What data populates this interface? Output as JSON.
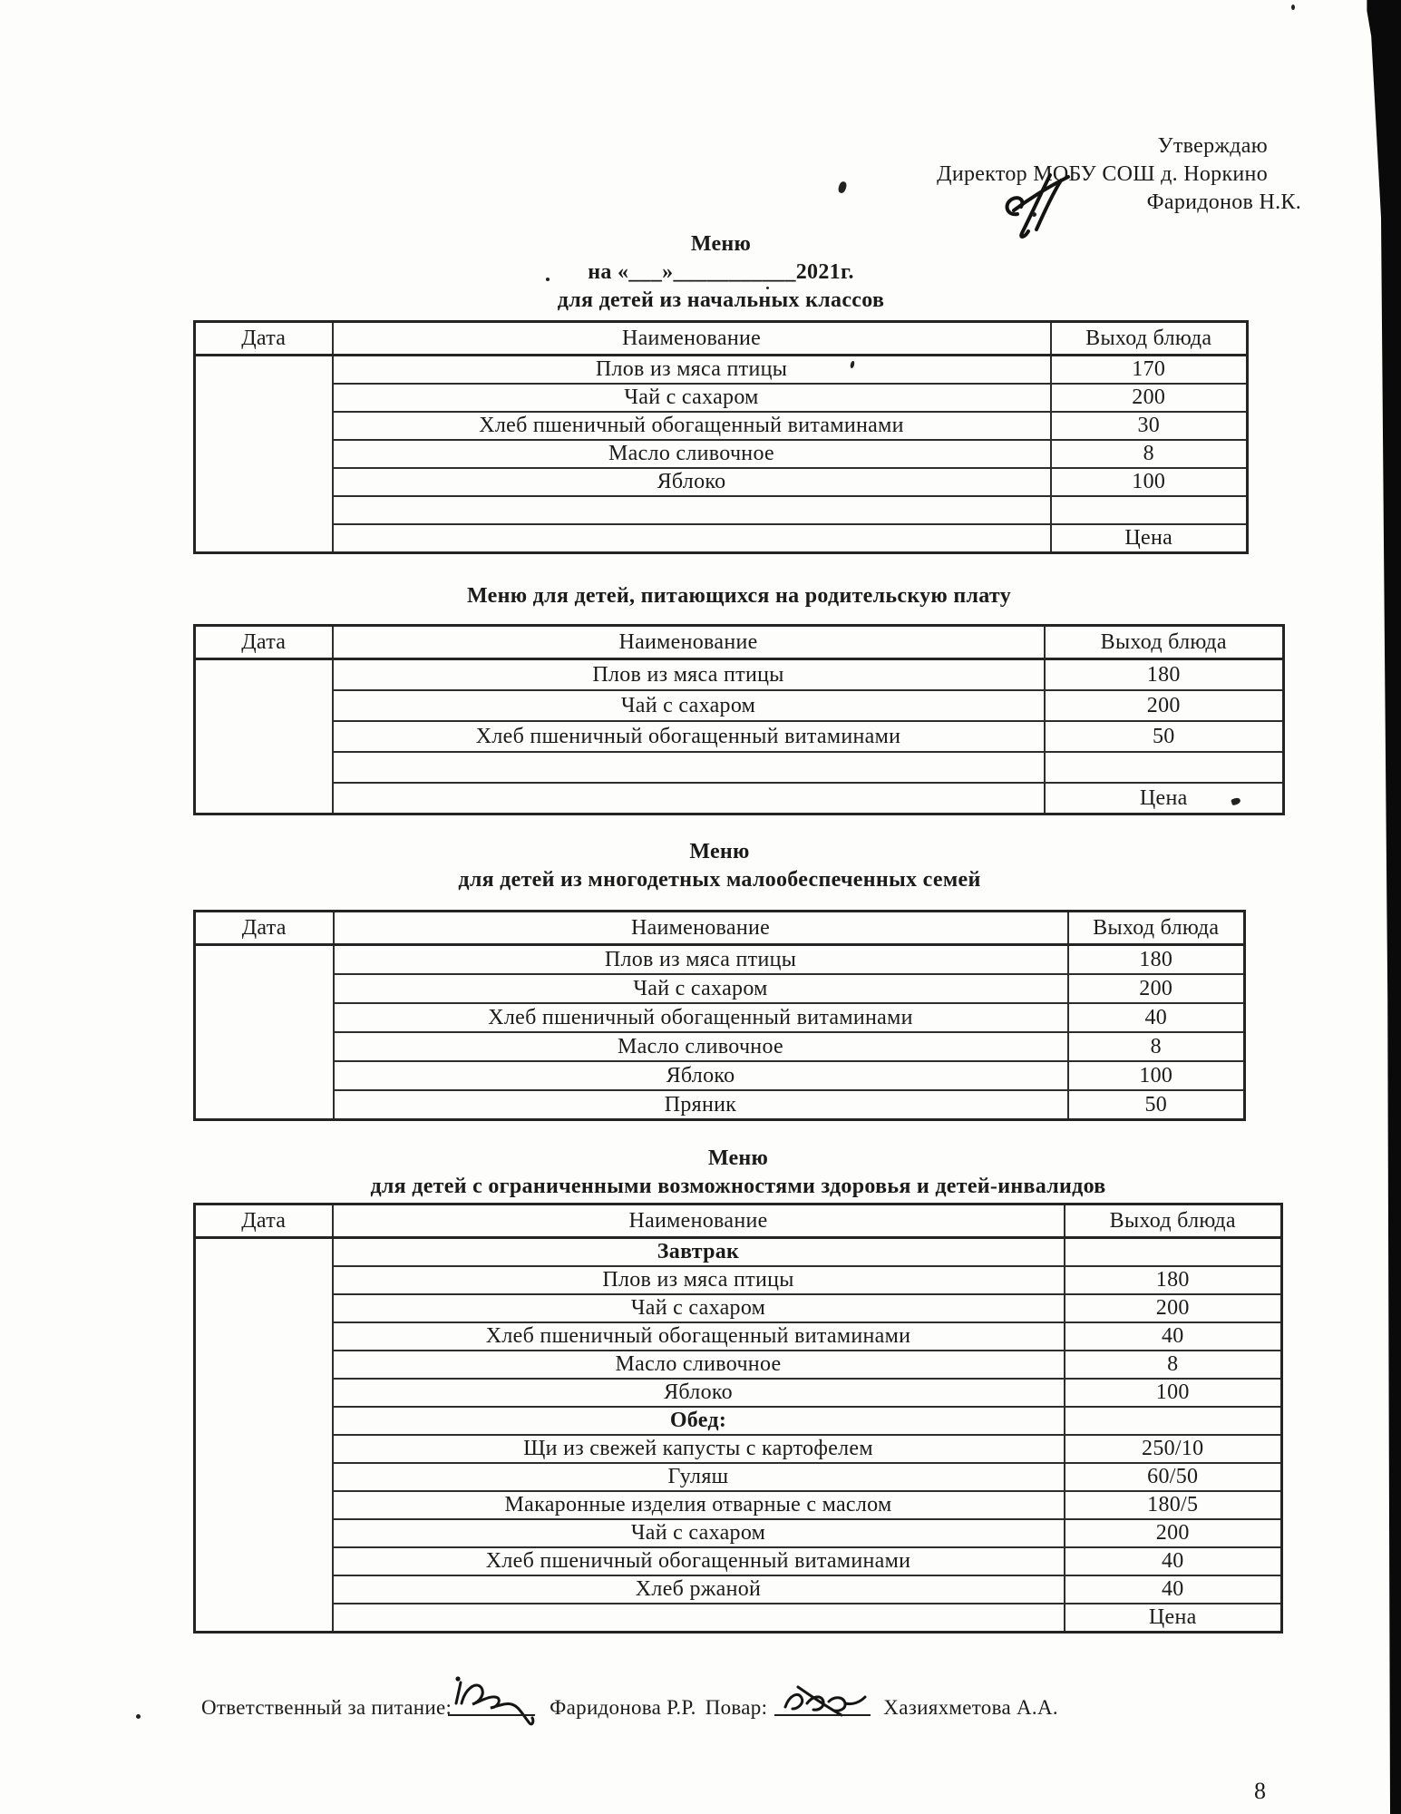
{
  "colors": {
    "ink": "#1b1b1b",
    "paper": "#fdfdfc",
    "table_line": "#2e2e2e",
    "scan_bar": "#0a0a0a"
  },
  "approval": {
    "line1": "Утверждаю",
    "line2": "Директор МОБУ СОШ д. Норкино",
    "line3": "Фаридонов Н.К."
  },
  "sections": [
    {
      "title_lines": [
        "Меню",
        "на «___»___________2021г.",
        "для детей из начальных классов"
      ],
      "columns": [
        "Дата",
        "Наименование",
        "Выход блюда"
      ],
      "rows": [
        {
          "name": "Плов из мяса птицы",
          "value": "170"
        },
        {
          "name": "Чай с сахаром",
          "value": "200"
        },
        {
          "name": "Хлеб пшеничный обогащенный витаминами",
          "value": "30"
        },
        {
          "name": "Масло сливочное",
          "value": "8"
        },
        {
          "name": "Яблоко",
          "value": "100"
        },
        {
          "name": "",
          "value": ""
        },
        {
          "name": "",
          "value": "Цена"
        }
      ]
    },
    {
      "title_lines": [
        "Меню для детей, питающихся на родительскую плату"
      ],
      "columns": [
        "Дата",
        "Наименование",
        "Выход блюда"
      ],
      "rows": [
        {
          "name": "Плов из мяса птицы",
          "value": "180"
        },
        {
          "name": "Чай с сахаром",
          "value": "200"
        },
        {
          "name": "Хлеб пшеничный обогащенный витаминами",
          "value": "50"
        },
        {
          "name": "",
          "value": ""
        },
        {
          "name": "",
          "value": "Цена"
        }
      ]
    },
    {
      "title_lines": [
        "Меню",
        "для детей из многодетных  малообеспеченных семей"
      ],
      "columns": [
        "Дата",
        "Наименование",
        "Выход блюда"
      ],
      "rows": [
        {
          "name": "Плов из мяса птицы",
          "value": "180"
        },
        {
          "name": "Чай с сахаром",
          "value": "200"
        },
        {
          "name": "Хлеб пшеничный обогащенный витаминами",
          "value": "40"
        },
        {
          "name": "Масло сливочное",
          "value": "8"
        },
        {
          "name": "Яблоко",
          "value": "100"
        },
        {
          "name": "Пряник",
          "value": "50"
        }
      ]
    },
    {
      "title_lines": [
        "Меню",
        "для детей с ограниченными возможностями здоровья и детей-инвалидов"
      ],
      "columns": [
        "Дата",
        "Наименование",
        "Выход блюда"
      ],
      "rows": [
        {
          "name": "Завтрак",
          "value": "",
          "subheader": true
        },
        {
          "name": "Плов из мяса птицы",
          "value": "180"
        },
        {
          "name": "Чай с сахаром",
          "value": "200"
        },
        {
          "name": "Хлеб пшеничный обогащенный витаминами",
          "value": "40"
        },
        {
          "name": "Масло сливочное",
          "value": "8"
        },
        {
          "name": "Яблоко",
          "value": "100"
        },
        {
          "name": "Обед:",
          "value": "",
          "subheader": true
        },
        {
          "name": "Щи из свежей капусты с картофелем",
          "value": "250/10"
        },
        {
          "name": "Гуляш",
          "value": "60/50"
        },
        {
          "name": "Макаронные изделия отварные с маслом",
          "value": "180/5"
        },
        {
          "name": "Чай с сахаром",
          "value": "200"
        },
        {
          "name": "Хлеб пшеничный обогащенный витаминами",
          "value": "40"
        },
        {
          "name": "Хлеб ржаной",
          "value": "40"
        },
        {
          "name": "",
          "value": "Цена"
        }
      ]
    }
  ],
  "footer": {
    "responsible_label": "Ответственный за питание:",
    "responsible_name": "Фаридонова Р.Р.",
    "cook_label": "Повар:",
    "cook_name": "Хазияхметова А.А."
  },
  "page_number": "8"
}
